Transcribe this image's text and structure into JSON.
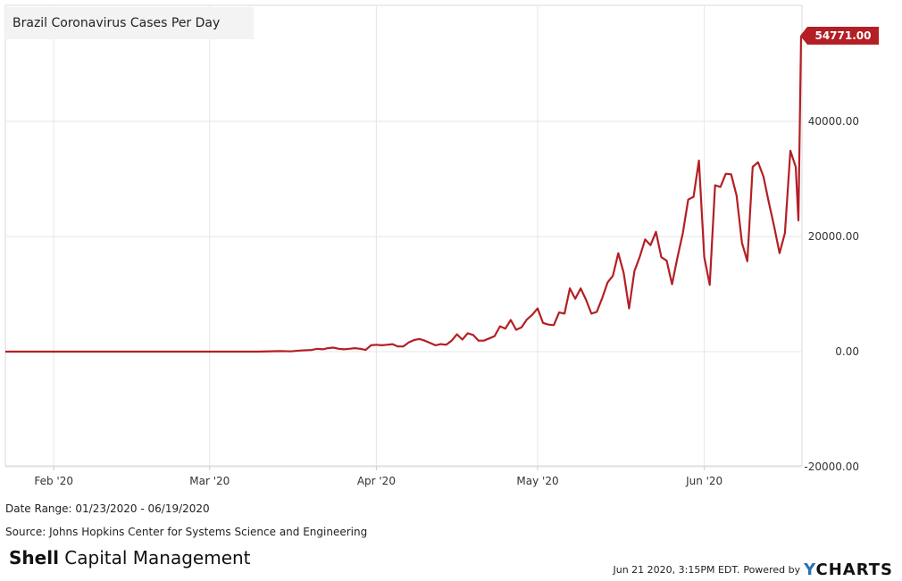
{
  "chart_data": {
    "type": "line",
    "title": "Brazil Coronavirus Cases Per Day",
    "xlabel": "",
    "ylabel": "",
    "x_start": "2020-01-23",
    "x_end": "2020-06-19",
    "ylim": [
      -20000,
      60000
    ],
    "yticks": [
      -20000,
      0,
      20000,
      40000
    ],
    "ytick_labels": [
      "-20000.00",
      "0.00",
      "20000.00",
      "40000.00"
    ],
    "xtick_labels": [
      "Feb '20",
      "Mar '20",
      "Apr '20",
      "May '20",
      "Jun '20"
    ],
    "xtick_dates": [
      "2020-02-01",
      "2020-03-01",
      "2020-04-01",
      "2020-05-01",
      "2020-06-01"
    ],
    "grid": true,
    "line_color": "#b31f24",
    "last_value_label": "54771.00",
    "series": [
      {
        "points": [
          [
            "2020-01-23",
            0
          ],
          [
            "2020-02-25",
            0
          ],
          [
            "2020-03-10",
            0
          ],
          [
            "2020-03-14",
            100
          ],
          [
            "2020-03-16",
            50
          ],
          [
            "2020-03-18",
            200
          ],
          [
            "2020-03-20",
            300
          ],
          [
            "2020-03-21",
            500
          ],
          [
            "2020-03-22",
            400
          ],
          [
            "2020-03-23",
            600
          ],
          [
            "2020-03-24",
            700
          ],
          [
            "2020-03-25",
            500
          ],
          [
            "2020-03-26",
            400
          ],
          [
            "2020-03-27",
            500
          ],
          [
            "2020-03-28",
            600
          ],
          [
            "2020-03-29",
            500
          ],
          [
            "2020-03-30",
            300
          ],
          [
            "2020-03-31",
            1100
          ],
          [
            "2020-04-01",
            1200
          ],
          [
            "2020-04-02",
            1100
          ],
          [
            "2020-04-03",
            1200
          ],
          [
            "2020-04-04",
            1300
          ],
          [
            "2020-04-05",
            900
          ],
          [
            "2020-04-06",
            900
          ],
          [
            "2020-04-07",
            1600
          ],
          [
            "2020-04-08",
            2000
          ],
          [
            "2020-04-09",
            2200
          ],
          [
            "2020-04-10",
            1900
          ],
          [
            "2020-04-11",
            1500
          ],
          [
            "2020-04-12",
            1100
          ],
          [
            "2020-04-13",
            1300
          ],
          [
            "2020-04-14",
            1200
          ],
          [
            "2020-04-15",
            1900
          ],
          [
            "2020-04-16",
            3000
          ],
          [
            "2020-04-17",
            2100
          ],
          [
            "2020-04-18",
            3200
          ],
          [
            "2020-04-19",
            2900
          ],
          [
            "2020-04-20",
            1900
          ],
          [
            "2020-04-21",
            1900
          ],
          [
            "2020-04-22",
            2300
          ],
          [
            "2020-04-23",
            2700
          ],
          [
            "2020-04-24",
            4400
          ],
          [
            "2020-04-25",
            4000
          ],
          [
            "2020-04-26",
            5500
          ],
          [
            "2020-04-27",
            3800
          ],
          [
            "2020-04-28",
            4200
          ],
          [
            "2020-04-29",
            5600
          ],
          [
            "2020-04-30",
            6400
          ],
          [
            "2020-05-01",
            7500
          ],
          [
            "2020-05-02",
            5000
          ],
          [
            "2020-05-03",
            4700
          ],
          [
            "2020-05-04",
            4600
          ],
          [
            "2020-05-05",
            6800
          ],
          [
            "2020-05-06",
            6600
          ],
          [
            "2020-05-07",
            11000
          ],
          [
            "2020-05-08",
            9200
          ],
          [
            "2020-05-09",
            11000
          ],
          [
            "2020-05-10",
            9000
          ],
          [
            "2020-05-11",
            6600
          ],
          [
            "2020-05-12",
            6900
          ],
          [
            "2020-05-13",
            9300
          ],
          [
            "2020-05-14",
            12000
          ],
          [
            "2020-05-15",
            13200
          ],
          [
            "2020-05-16",
            17100
          ],
          [
            "2020-05-17",
            13700
          ],
          [
            "2020-05-18",
            7500
          ],
          [
            "2020-05-19",
            14000
          ],
          [
            "2020-05-20",
            16500
          ],
          [
            "2020-05-21",
            19500
          ],
          [
            "2020-05-22",
            18500
          ],
          [
            "2020-05-23",
            20800
          ],
          [
            "2020-05-24",
            16400
          ],
          [
            "2020-05-25",
            15800
          ],
          [
            "2020-05-26",
            11700
          ],
          [
            "2020-05-27",
            16300
          ],
          [
            "2020-05-28",
            20600
          ],
          [
            "2020-05-29",
            26400
          ],
          [
            "2020-05-30",
            26900
          ],
          [
            "2020-05-31",
            33200
          ],
          [
            "2020-06-01",
            16400
          ],
          [
            "2020-06-02",
            11600
          ],
          [
            "2020-06-03",
            28900
          ],
          [
            "2020-06-04",
            28600
          ],
          [
            "2020-06-05",
            30900
          ],
          [
            "2020-06-06",
            30800
          ],
          [
            "2020-06-07",
            27100
          ],
          [
            "2020-06-08",
            18900
          ],
          [
            "2020-06-09",
            15700
          ],
          [
            "2020-06-10",
            32100
          ],
          [
            "2020-06-11",
            32900
          ],
          [
            "2020-06-12",
            30400
          ],
          [
            "2020-06-13",
            25900
          ],
          [
            "2020-06-14",
            21700
          ],
          [
            "2020-06-15",
            17100
          ],
          [
            "2020-06-16",
            20600
          ],
          [
            "2020-06-17",
            34900
          ],
          [
            "2020-06-18",
            32100
          ],
          [
            "2020-06-18T12:00",
            22800
          ],
          [
            "2020-06-19",
            54771
          ]
        ]
      }
    ]
  },
  "meta": {
    "date_range": "Date Range: 01/23/2020 - 06/19/2020",
    "source": "Source: Johns Hopkins Center for Systems Science and Engineering",
    "brand_bold": "Shell",
    "brand_rest": " Capital Management",
    "timestamp": "Jun 21 2020, 3:15PM EDT.",
    "powered_by": "Powered by",
    "ycharts_y": "Y",
    "ycharts_rest": "CHARTS"
  }
}
